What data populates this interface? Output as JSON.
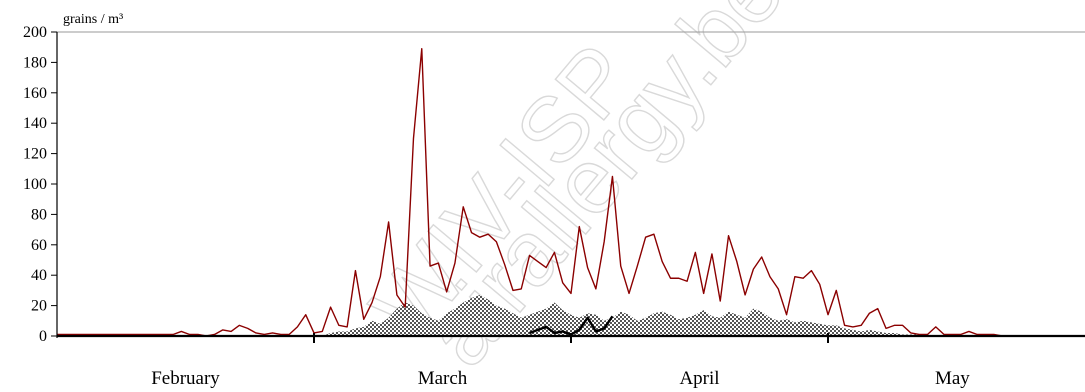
{
  "chart_data": {
    "type": "line",
    "ylabel": "grains / m³",
    "ylim": [
      0,
      200
    ],
    "yticks": [
      0,
      20,
      40,
      60,
      80,
      100,
      120,
      140,
      160,
      180,
      200
    ],
    "xlim": [
      0,
      124
    ],
    "months": [
      {
        "label": "February",
        "start_day": 0
      },
      {
        "label": "March",
        "start_day": 31
      },
      {
        "label": "April",
        "start_day": 62
      },
      {
        "label": "May",
        "start_day": 93
      }
    ],
    "grid": "top border only",
    "series": [
      {
        "style": "line",
        "color": "#8b0000",
        "values": [
          1,
          1,
          1,
          1,
          1,
          1,
          1,
          1,
          1,
          1,
          1,
          1,
          1,
          1,
          1,
          3,
          1,
          1,
          0,
          1,
          4,
          3,
          7,
          5,
          2,
          1,
          2,
          1,
          1,
          6,
          14,
          2,
          3,
          19,
          7,
          6,
          43,
          11,
          22,
          39,
          75,
          27,
          19,
          130,
          189,
          46,
          48,
          29,
          48,
          85,
          68,
          65,
          67,
          62,
          47,
          30,
          31,
          53,
          49,
          45,
          55,
          35,
          28,
          72,
          45,
          31,
          62,
          105,
          46,
          28,
          46,
          65,
          67,
          49,
          38,
          38,
          36,
          55,
          28,
          54,
          23,
          66,
          49,
          27,
          44,
          52,
          39,
          31,
          14,
          39,
          38,
          43,
          34,
          14,
          30,
          7,
          6,
          7,
          15,
          18,
          5,
          7,
          7,
          2,
          1,
          1,
          6,
          1,
          1,
          1,
          3,
          1,
          1,
          1,
          0
        ]
      },
      {
        "style": "area",
        "color": "#777777",
        "values": [
          0,
          0,
          0,
          0,
          0,
          0,
          0,
          0,
          0,
          0,
          0,
          0,
          0,
          0,
          0,
          0,
          0,
          0,
          0,
          0,
          0,
          0,
          0,
          0,
          0,
          0,
          0,
          0,
          0,
          0,
          0,
          0,
          0,
          2,
          3,
          3,
          5,
          6,
          10,
          8,
          12,
          18,
          22,
          20,
          15,
          12,
          10,
          15,
          18,
          22,
          25,
          27,
          24,
          20,
          18,
          15,
          12,
          14,
          16,
          18,
          22,
          17,
          14,
          12,
          15,
          14,
          10,
          12,
          16,
          14,
          10,
          12,
          15,
          16,
          14,
          11,
          12,
          14,
          17,
          13,
          12,
          16,
          14,
          12,
          18,
          16,
          12,
          10,
          11,
          9,
          10,
          9,
          8,
          7,
          7,
          5,
          4,
          3,
          4,
          3,
          2,
          2,
          1,
          1,
          1,
          0,
          0,
          0,
          0,
          0,
          0,
          0,
          0,
          0,
          0
        ]
      },
      {
        "style": "line",
        "color": "#000000",
        "values": [
          0,
          0,
          0,
          0,
          0,
          0,
          0,
          0,
          0,
          0,
          0,
          0,
          0,
          0,
          0,
          0,
          0,
          0,
          0,
          0,
          0,
          0,
          0,
          0,
          0,
          0,
          0,
          0,
          0,
          0,
          0,
          0,
          0,
          0,
          0,
          0,
          0,
          0,
          0,
          0,
          0,
          0,
          0,
          0,
          0,
          0,
          0,
          0,
          0,
          0,
          0,
          0,
          0,
          0,
          0,
          0,
          0,
          0,
          0,
          0,
          0,
          0,
          0,
          0,
          0,
          0,
          0,
          0,
          0,
          0,
          0,
          0,
          0,
          0,
          0,
          0,
          0,
          0,
          0,
          0,
          0,
          0,
          0,
          0,
          0,
          0,
          0,
          0,
          0,
          0,
          0,
          0,
          0,
          0,
          0,
          0,
          0,
          0,
          0,
          0,
          0,
          0,
          0,
          0,
          0,
          0,
          0,
          0,
          0,
          0,
          0,
          0,
          0,
          0,
          0
        ],
        "segment": {
          "start_day": 57,
          "values": [
            2,
            4,
            6,
            2,
            3,
            1,
            4,
            12,
            3,
            5,
            13
          ]
        }
      }
    ]
  },
  "watermark": {
    "lines": [
      "WIV-ISP",
      "airallergy.be"
    ],
    "color": "#d9d9d9"
  }
}
